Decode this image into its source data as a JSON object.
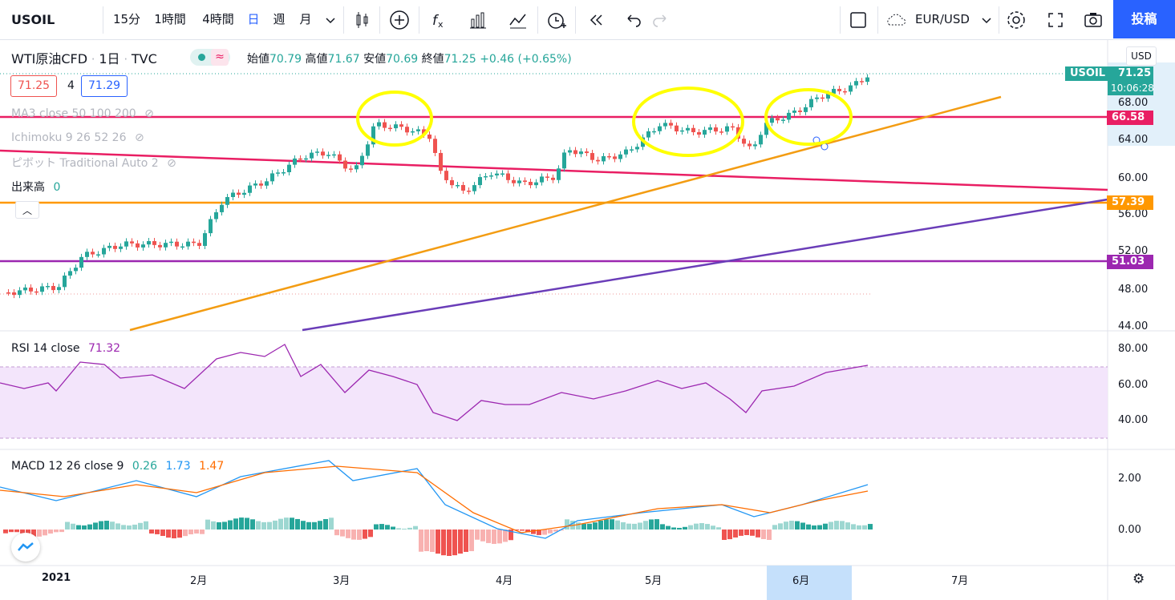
{
  "toolbar": {
    "symbol": "USOIL",
    "intervals": [
      "15分",
      "1時間",
      "4時間",
      "日",
      "週",
      "月"
    ],
    "active_interval": "日",
    "currency": "EUR/USD",
    "post_label": "投稿"
  },
  "legend": {
    "title": "WTI原油CFD",
    "interval": "1日",
    "exchange": "TVC",
    "open_label": "始値",
    "open": "70.79",
    "high_label": "高値",
    "high": "71.67",
    "low_label": "安値",
    "low": "70.69",
    "close_label": "終値",
    "close": "71.25",
    "change": "+0.46 (+0.65%)",
    "bid": "71.25",
    "spread": "4",
    "ask": "71.29",
    "indicators": [
      "MA3 close 50 100 200",
      "Ichimoku 9 26 52 26",
      "ピボット Traditional Auto 2"
    ],
    "volume_label": "出来高",
    "volume_value": "0"
  },
  "price_axis": {
    "unit": "USD",
    "ticks": [
      "68.00",
      "64.00",
      "60.00",
      "56.00",
      "52.00",
      "48.00",
      "44.00"
    ],
    "last_symbol": "USOIL",
    "last_price": "71.25",
    "countdown": "10:06:28",
    "levels": [
      {
        "value": "66.58",
        "color": "#e91e63"
      },
      {
        "value": "57.39",
        "color": "#ff9800"
      },
      {
        "value": "51.03",
        "color": "#9c27b0"
      }
    ]
  },
  "rsi": {
    "label": "RSI 14 close",
    "value": "71.32",
    "ticks": [
      "80.00",
      "60.00",
      "40.00"
    ]
  },
  "macd": {
    "label": "MACD 12 26 close 9",
    "v1": "0.26",
    "v2": "1.73",
    "v3": "1.47",
    "ticks": [
      "2.00",
      "0.00"
    ]
  },
  "time_axis": {
    "labels": [
      "2021",
      "2月",
      "3月",
      "4月",
      "5月",
      "6月",
      "7月"
    ]
  },
  "colors": {
    "up": "#26a69a",
    "down": "#ef5350",
    "accent": "#2962ff",
    "highlight": "#ffff00"
  }
}
